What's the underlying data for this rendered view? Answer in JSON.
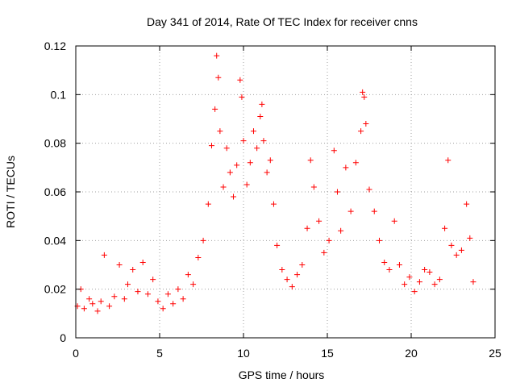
{
  "chart_data": {
    "type": "scatter",
    "title": "Day 341 of 2014, Rate Of TEC Index for receiver cnns",
    "xlabel": "GPS time / hours",
    "ylabel": "ROTI / TECUs",
    "xlim": [
      0,
      25
    ],
    "ylim": [
      0,
      0.12
    ],
    "x_ticks": [
      0,
      5,
      10,
      15,
      20,
      25
    ],
    "x_tick_labels": [
      "0",
      "5",
      "10",
      "15",
      "20",
      "25"
    ],
    "y_ticks": [
      0,
      0.02,
      0.04,
      0.06,
      0.08,
      0.1,
      0.12
    ],
    "y_tick_labels": [
      "0",
      "0.02",
      "0.04",
      "0.06",
      "0.08",
      "0.1",
      "0.12"
    ],
    "grid": true,
    "marker": "plus",
    "color": "#ff0000",
    "series": [
      {
        "x": [
          0.1,
          0.3,
          0.5,
          0.8,
          1.0,
          1.3,
          1.5,
          1.7,
          2.0,
          2.3,
          2.6,
          2.9,
          3.1,
          3.4,
          3.7,
          4.0,
          4.3,
          4.6,
          4.9,
          5.2,
          5.5,
          5.8,
          6.1,
          6.4,
          6.7,
          7.0,
          7.3,
          7.6,
          7.9,
          8.1,
          8.3,
          8.4,
          8.5,
          8.6,
          8.8,
          9.0,
          9.2,
          9.4,
          9.6,
          9.8,
          9.9,
          10.0,
          10.2,
          10.4,
          10.6,
          10.8,
          11.0,
          11.1,
          11.2,
          11.4,
          11.6,
          11.8,
          12.0,
          12.3,
          12.6,
          12.9,
          13.2,
          13.5,
          13.8,
          14.0,
          14.2,
          14.5,
          14.8,
          15.1,
          15.4,
          15.6,
          15.8,
          16.1,
          16.4,
          16.7,
          17.0,
          17.1,
          17.2,
          17.3,
          17.5,
          17.8,
          18.1,
          18.4,
          18.7,
          19.0,
          19.3,
          19.6,
          19.9,
          20.2,
          20.5,
          20.8,
          21.1,
          21.4,
          21.7,
          22.0,
          22.2,
          22.4,
          22.7,
          23.0,
          23.3,
          23.5,
          23.7
        ],
        "y": [
          0.013,
          0.02,
          0.012,
          0.016,
          0.014,
          0.011,
          0.015,
          0.034,
          0.013,
          0.017,
          0.03,
          0.016,
          0.022,
          0.028,
          0.019,
          0.031,
          0.018,
          0.024,
          0.015,
          0.012,
          0.018,
          0.014,
          0.02,
          0.016,
          0.026,
          0.022,
          0.033,
          0.04,
          0.055,
          0.079,
          0.094,
          0.116,
          0.107,
          0.085,
          0.062,
          0.078,
          0.068,
          0.058,
          0.071,
          0.106,
          0.099,
          0.081,
          0.063,
          0.072,
          0.085,
          0.078,
          0.091,
          0.096,
          0.081,
          0.068,
          0.073,
          0.055,
          0.038,
          0.028,
          0.024,
          0.021,
          0.026,
          0.03,
          0.045,
          0.073,
          0.062,
          0.048,
          0.035,
          0.04,
          0.077,
          0.06,
          0.044,
          0.07,
          0.052,
          0.072,
          0.085,
          0.101,
          0.099,
          0.088,
          0.061,
          0.052,
          0.04,
          0.031,
          0.028,
          0.048,
          0.03,
          0.022,
          0.025,
          0.019,
          0.023,
          0.028,
          0.027,
          0.022,
          0.024,
          0.045,
          0.073,
          0.038,
          0.034,
          0.036,
          0.055,
          0.041,
          0.023
        ]
      }
    ]
  }
}
